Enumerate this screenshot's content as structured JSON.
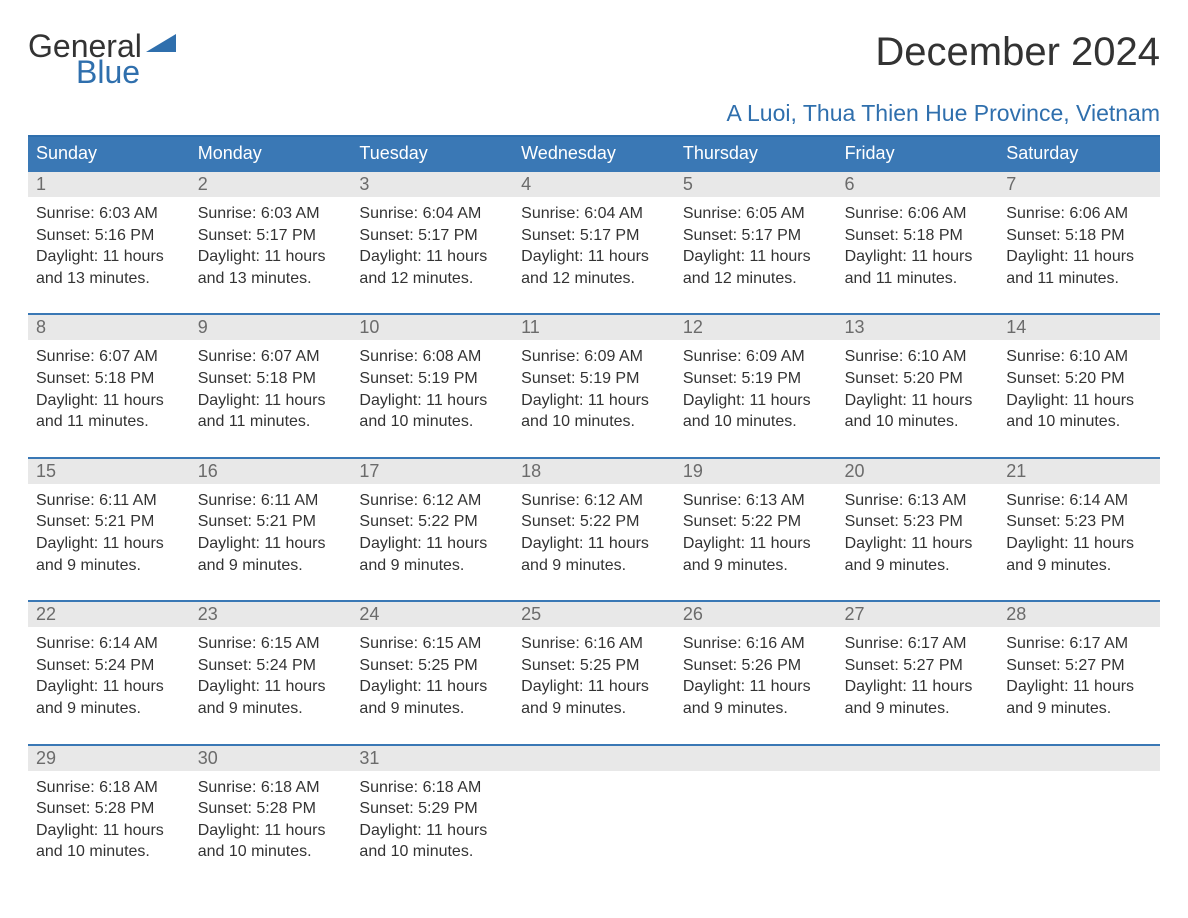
{
  "logo": {
    "word1": "General",
    "word2": "Blue",
    "text_color": "#333333",
    "accent_color": "#2f6fad"
  },
  "title": "December 2024",
  "location": "A Luoi, Thua Thien Hue Province, Vietnam",
  "colors": {
    "header_bg": "#3a78b5",
    "header_border": "#2f6fad",
    "daynum_bg": "#e8e8e8",
    "daynum_color": "#6b6b6b",
    "text": "#333333",
    "background": "#ffffff"
  },
  "weekdays": [
    "Sunday",
    "Monday",
    "Tuesday",
    "Wednesday",
    "Thursday",
    "Friday",
    "Saturday"
  ],
  "weeks": [
    [
      {
        "n": "1",
        "sunrise": "6:03 AM",
        "sunset": "5:16 PM",
        "daylight": "11 hours and 13 minutes."
      },
      {
        "n": "2",
        "sunrise": "6:03 AM",
        "sunset": "5:17 PM",
        "daylight": "11 hours and 13 minutes."
      },
      {
        "n": "3",
        "sunrise": "6:04 AM",
        "sunset": "5:17 PM",
        "daylight": "11 hours and 12 minutes."
      },
      {
        "n": "4",
        "sunrise": "6:04 AM",
        "sunset": "5:17 PM",
        "daylight": "11 hours and 12 minutes."
      },
      {
        "n": "5",
        "sunrise": "6:05 AM",
        "sunset": "5:17 PM",
        "daylight": "11 hours and 12 minutes."
      },
      {
        "n": "6",
        "sunrise": "6:06 AM",
        "sunset": "5:18 PM",
        "daylight": "11 hours and 11 minutes."
      },
      {
        "n": "7",
        "sunrise": "6:06 AM",
        "sunset": "5:18 PM",
        "daylight": "11 hours and 11 minutes."
      }
    ],
    [
      {
        "n": "8",
        "sunrise": "6:07 AM",
        "sunset": "5:18 PM",
        "daylight": "11 hours and 11 minutes."
      },
      {
        "n": "9",
        "sunrise": "6:07 AM",
        "sunset": "5:18 PM",
        "daylight": "11 hours and 11 minutes."
      },
      {
        "n": "10",
        "sunrise": "6:08 AM",
        "sunset": "5:19 PM",
        "daylight": "11 hours and 10 minutes."
      },
      {
        "n": "11",
        "sunrise": "6:09 AM",
        "sunset": "5:19 PM",
        "daylight": "11 hours and 10 minutes."
      },
      {
        "n": "12",
        "sunrise": "6:09 AM",
        "sunset": "5:19 PM",
        "daylight": "11 hours and 10 minutes."
      },
      {
        "n": "13",
        "sunrise": "6:10 AM",
        "sunset": "5:20 PM",
        "daylight": "11 hours and 10 minutes."
      },
      {
        "n": "14",
        "sunrise": "6:10 AM",
        "sunset": "5:20 PM",
        "daylight": "11 hours and 10 minutes."
      }
    ],
    [
      {
        "n": "15",
        "sunrise": "6:11 AM",
        "sunset": "5:21 PM",
        "daylight": "11 hours and 9 minutes."
      },
      {
        "n": "16",
        "sunrise": "6:11 AM",
        "sunset": "5:21 PM",
        "daylight": "11 hours and 9 minutes."
      },
      {
        "n": "17",
        "sunrise": "6:12 AM",
        "sunset": "5:22 PM",
        "daylight": "11 hours and 9 minutes."
      },
      {
        "n": "18",
        "sunrise": "6:12 AM",
        "sunset": "5:22 PM",
        "daylight": "11 hours and 9 minutes."
      },
      {
        "n": "19",
        "sunrise": "6:13 AM",
        "sunset": "5:22 PM",
        "daylight": "11 hours and 9 minutes."
      },
      {
        "n": "20",
        "sunrise": "6:13 AM",
        "sunset": "5:23 PM",
        "daylight": "11 hours and 9 minutes."
      },
      {
        "n": "21",
        "sunrise": "6:14 AM",
        "sunset": "5:23 PM",
        "daylight": "11 hours and 9 minutes."
      }
    ],
    [
      {
        "n": "22",
        "sunrise": "6:14 AM",
        "sunset": "5:24 PM",
        "daylight": "11 hours and 9 minutes."
      },
      {
        "n": "23",
        "sunrise": "6:15 AM",
        "sunset": "5:24 PM",
        "daylight": "11 hours and 9 minutes."
      },
      {
        "n": "24",
        "sunrise": "6:15 AM",
        "sunset": "5:25 PM",
        "daylight": "11 hours and 9 minutes."
      },
      {
        "n": "25",
        "sunrise": "6:16 AM",
        "sunset": "5:25 PM",
        "daylight": "11 hours and 9 minutes."
      },
      {
        "n": "26",
        "sunrise": "6:16 AM",
        "sunset": "5:26 PM",
        "daylight": "11 hours and 9 minutes."
      },
      {
        "n": "27",
        "sunrise": "6:17 AM",
        "sunset": "5:27 PM",
        "daylight": "11 hours and 9 minutes."
      },
      {
        "n": "28",
        "sunrise": "6:17 AM",
        "sunset": "5:27 PM",
        "daylight": "11 hours and 9 minutes."
      }
    ],
    [
      {
        "n": "29",
        "sunrise": "6:18 AM",
        "sunset": "5:28 PM",
        "daylight": "11 hours and 10 minutes."
      },
      {
        "n": "30",
        "sunrise": "6:18 AM",
        "sunset": "5:28 PM",
        "daylight": "11 hours and 10 minutes."
      },
      {
        "n": "31",
        "sunrise": "6:18 AM",
        "sunset": "5:29 PM",
        "daylight": "11 hours and 10 minutes."
      },
      null,
      null,
      null,
      null
    ]
  ],
  "labels": {
    "sunrise": "Sunrise: ",
    "sunset": "Sunset: ",
    "daylight": "Daylight: "
  }
}
